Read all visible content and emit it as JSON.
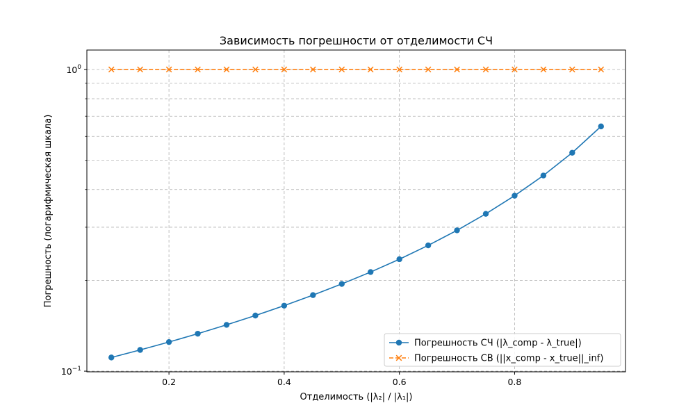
{
  "chart_data": {
    "type": "line",
    "title": "Зависимость погрешности от отделимости СЧ",
    "xlabel": "Отделимость (|λ₂| / |λ₁|)",
    "ylabel": "Погрешность (логарифмическая шкала)",
    "yscale": "log",
    "xlim": [
      0.0575,
      0.9925
    ],
    "ylim": [
      0.0995,
      1.16
    ],
    "x_ticks": [
      0.2,
      0.4,
      0.6,
      0.8
    ],
    "x_tick_labels": [
      "0.2",
      "0.4",
      "0.6",
      "0.8"
    ],
    "y_major_ticks": [
      {
        "value": 0.1,
        "base": "10",
        "exp": "−1"
      },
      {
        "value": 1,
        "base": "10",
        "exp": "0"
      }
    ],
    "y_minor_ticks": [
      0.2,
      0.3,
      0.4,
      0.5,
      0.6,
      0.7,
      0.8,
      0.9
    ],
    "grid": true,
    "legend_position": "lower-right",
    "x": [
      0.1,
      0.15,
      0.2,
      0.25,
      0.3,
      0.35,
      0.4,
      0.45,
      0.5,
      0.55,
      0.6,
      0.65,
      0.7,
      0.75,
      0.8,
      0.85,
      0.9,
      0.95
    ],
    "series": [
      {
        "name": "Погрешность СЧ (|λ_comp - λ_true|)",
        "color": "#1f77b4",
        "marker": "circle",
        "linestyle": "solid",
        "values": [
          0.111,
          0.1176,
          0.1249,
          0.1331,
          0.1424,
          0.1529,
          0.1649,
          0.1787,
          0.1946,
          0.2131,
          0.235,
          0.2612,
          0.293,
          0.3323,
          0.3816,
          0.4452,
          0.5297,
          0.6476
        ]
      },
      {
        "name": "Погрешность СВ (||x_comp - x_true||_inf)",
        "color": "#ff7f0e",
        "marker": "x",
        "linestyle": "dashed",
        "values": [
          1,
          1,
          1,
          1,
          1,
          1,
          1,
          1,
          1,
          1,
          1,
          1,
          1,
          1,
          1,
          1,
          1,
          1
        ]
      }
    ]
  }
}
